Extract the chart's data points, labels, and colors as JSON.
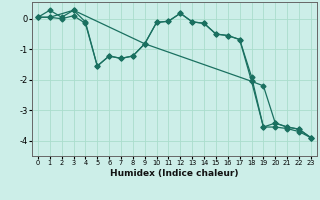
{
  "xlabel": "Humidex (Indice chaleur)",
  "bg_color": "#cceee8",
  "grid_color": "#aaddcc",
  "line_color": "#1a7060",
  "xlim": [
    -0.5,
    23.5
  ],
  "ylim": [
    -4.5,
    0.55
  ],
  "yticks": [
    0,
    -1,
    -2,
    -3,
    -4
  ],
  "xticks": [
    0,
    1,
    2,
    3,
    4,
    5,
    6,
    7,
    8,
    9,
    10,
    11,
    12,
    13,
    14,
    15,
    16,
    17,
    18,
    19,
    20,
    21,
    22,
    23
  ],
  "line1_x": [
    0,
    1,
    2,
    3,
    4,
    5,
    6,
    7,
    8,
    9,
    10,
    11,
    12,
    13,
    14,
    15,
    16,
    17,
    18,
    19,
    20,
    21,
    22,
    23
  ],
  "line1_y": [
    0.05,
    0.28,
    0.05,
    0.28,
    -0.1,
    -1.55,
    -1.22,
    -1.3,
    -1.22,
    -0.82,
    -0.12,
    -0.08,
    0.18,
    -0.1,
    -0.15,
    -0.5,
    -0.55,
    -0.68,
    -1.9,
    -3.55,
    -3.42,
    -3.55,
    -3.62,
    -3.9
  ],
  "line2_x": [
    0,
    1,
    2,
    3,
    4,
    5,
    6,
    7,
    8,
    9,
    10,
    11,
    12,
    13,
    14,
    15,
    16,
    17,
    18,
    19,
    20,
    21,
    22,
    23
  ],
  "line2_y": [
    0.05,
    0.05,
    0.0,
    0.1,
    -0.15,
    -1.55,
    -1.22,
    -1.3,
    -1.22,
    -0.82,
    -0.12,
    -0.08,
    0.18,
    -0.1,
    -0.15,
    -0.5,
    -0.55,
    -0.68,
    -2.05,
    -3.55,
    -3.55,
    -3.6,
    -3.7,
    -3.9
  ],
  "line3_x": [
    0,
    1,
    3,
    9,
    18,
    19,
    20,
    21,
    22,
    23
  ],
  "line3_y": [
    0.05,
    0.05,
    0.28,
    -0.82,
    -2.05,
    -2.2,
    -3.42,
    -3.55,
    -3.62,
    -3.9
  ]
}
